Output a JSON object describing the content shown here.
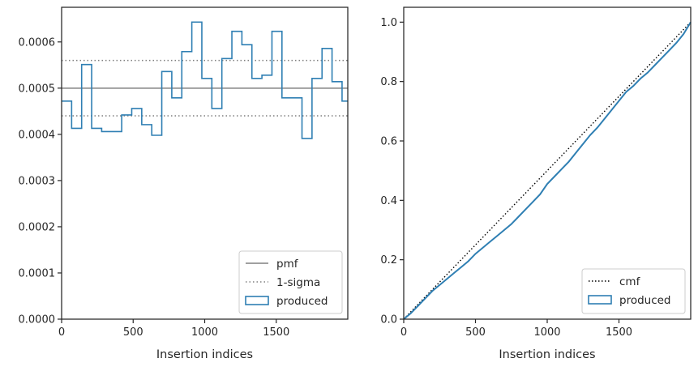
{
  "chart_data": [
    {
      "type": "step",
      "xlabel": "Insertion indices",
      "ylabel": "",
      "xlim": [
        0,
        2000
      ],
      "ylim": [
        0,
        0.000675
      ],
      "xticks": [
        0,
        500,
        1000,
        1500
      ],
      "xtick_labels": [
        "0",
        "500",
        "1000",
        "1500"
      ],
      "yticks": [
        0,
        0.0001,
        0.0002,
        0.0003,
        0.0004,
        0.0005,
        0.0006
      ],
      "ytick_labels": [
        "0.0000",
        "0.0001",
        "0.0002",
        "0.0003",
        "0.0004",
        "0.0005",
        "0.0006"
      ],
      "grid": false,
      "legend_position": "lower-right",
      "reference_lines": [
        {
          "name": "pmf",
          "y": 0.0005,
          "style": "solid",
          "color": "#808080"
        },
        {
          "name": "1-sigma",
          "y": 0.00056,
          "style": "dotted",
          "color": "#808080"
        },
        {
          "name": "1-sigma",
          "y": 0.00044,
          "style": "dotted",
          "color": "#808080"
        }
      ],
      "series": [
        {
          "name": "produced",
          "color": "#2f7fb3",
          "bin_edges": [
            0,
            70,
            140,
            210,
            280,
            350,
            420,
            490,
            560,
            630,
            700,
            770,
            840,
            910,
            980,
            1050,
            1120,
            1190,
            1260,
            1330,
            1400,
            1470,
            1540,
            1610,
            1680,
            1750,
            1820,
            1890,
            1960,
            2000
          ],
          "values": [
            0.000472,
            0.000413,
            0.000551,
            0.000413,
            0.000406,
            0.000406,
            0.000442,
            0.000456,
            0.000421,
            0.000398,
            0.000536,
            0.000479,
            0.000579,
            0.000643,
            0.000521,
            0.000456,
            0.000564,
            0.000623,
            0.000594,
            0.000521,
            0.000528,
            0.000623,
            0.000479,
            0.000479,
            0.000391,
            0.000521,
            0.000586,
            0.000514,
            0.000472
          ]
        }
      ],
      "legend": [
        "pmf",
        "1-sigma",
        "produced"
      ]
    },
    {
      "type": "line",
      "xlabel": "Insertion indices",
      "ylabel": "",
      "xlim": [
        0,
        2000
      ],
      "ylim": [
        0,
        1.05
      ],
      "xticks": [
        0,
        500,
        1000,
        1500
      ],
      "xtick_labels": [
        "0",
        "500",
        "1000",
        "1500"
      ],
      "yticks": [
        0,
        0.2,
        0.4,
        0.6,
        0.8,
        1.0
      ],
      "ytick_labels": [
        "0.0",
        "0.2",
        "0.4",
        "0.6",
        "0.8",
        "1.0"
      ],
      "grid": false,
      "legend_position": "lower-right",
      "series": [
        {
          "name": "cmf",
          "style": "dotted",
          "color": "#000000",
          "x": [
            0,
            2000
          ],
          "y": [
            0,
            1.0
          ]
        },
        {
          "name": "produced",
          "style": "step",
          "color": "#2f7fb3",
          "x": [
            0,
            50,
            100,
            150,
            200,
            250,
            300,
            350,
            400,
            450,
            500,
            550,
            600,
            650,
            700,
            750,
            800,
            850,
            900,
            950,
            1000,
            1050,
            1100,
            1150,
            1200,
            1250,
            1300,
            1350,
            1400,
            1450,
            1500,
            1550,
            1600,
            1650,
            1700,
            1750,
            1800,
            1850,
            1900,
            1950,
            2000
          ],
          "y": [
            0,
            0.02,
            0.045,
            0.07,
            0.095,
            0.115,
            0.135,
            0.155,
            0.175,
            0.195,
            0.22,
            0.24,
            0.26,
            0.28,
            0.3,
            0.32,
            0.345,
            0.37,
            0.395,
            0.42,
            0.455,
            0.48,
            0.505,
            0.53,
            0.56,
            0.59,
            0.62,
            0.645,
            0.675,
            0.705,
            0.735,
            0.765,
            0.785,
            0.81,
            0.83,
            0.855,
            0.88,
            0.905,
            0.93,
            0.96,
            1.0
          ]
        }
      ],
      "legend": [
        "cmf",
        "produced"
      ]
    }
  ]
}
